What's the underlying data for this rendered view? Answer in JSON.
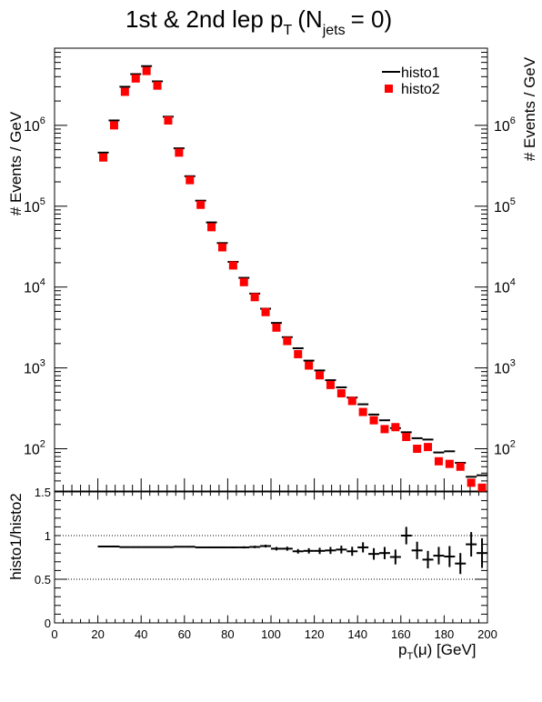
{
  "chart_data": [
    {
      "type": "scatter",
      "title": "1st & 2nd lep p",
      "title_sub_T": "T",
      "title_paren": "(N",
      "title_sub_jets": "jets",
      "title_tail": "= 0)",
      "ylabel": "# Events / GeV",
      "yscale": "log",
      "ylim": [
        30,
        9000000
      ],
      "xlim": [
        0,
        200
      ],
      "y_tick_labels": [
        {
          "base": "10",
          "exp": "2",
          "value": 100
        },
        {
          "base": "10",
          "exp": "3",
          "value": 1000
        },
        {
          "base": "10",
          "exp": "4",
          "value": 10000
        },
        {
          "base": "10",
          "exp": "5",
          "value": 100000
        },
        {
          "base": "10",
          "exp": "6",
          "value": 1000000
        }
      ],
      "legend_position": "top-right",
      "legend": [
        {
          "name": "histo1",
          "marker": "line",
          "color": "#000000"
        },
        {
          "name": "histo2",
          "marker": "square",
          "color": "#ff0000"
        }
      ],
      "x": [
        22.5,
        27.5,
        32.5,
        37.5,
        42.5,
        47.5,
        52.5,
        57.5,
        62.5,
        67.5,
        72.5,
        77.5,
        82.5,
        87.5,
        92.5,
        97.5,
        102.5,
        107.5,
        112.5,
        117.5,
        122.5,
        127.5,
        132.5,
        137.5,
        142.5,
        147.5,
        152.5,
        157.5,
        162.5,
        167.5,
        172.5,
        177.5,
        182.5,
        187.5,
        192.5,
        197.5
      ],
      "series": [
        {
          "name": "histo1",
          "color": "#000000",
          "values": [
            460000,
            1150000,
            3000000,
            4300000,
            5400000,
            3500000,
            1280000,
            520000,
            235000,
            117000,
            63000,
            35000,
            20500,
            13000,
            8300,
            5400,
            3600,
            2400,
            1750,
            1230,
            930,
            705,
            575,
            430,
            355,
            265,
            225,
            180,
            160,
            135,
            130,
            90,
            93,
            67,
            45,
            47
          ]
        },
        {
          "name": "histo2",
          "color": "#ff0000",
          "values": [
            400000,
            1000000,
            2600000,
            3800000,
            4700000,
            3100000,
            1150000,
            460000,
            210000,
            104000,
            55000,
            31000,
            18500,
            11500,
            7500,
            4900,
            3150,
            2150,
            1480,
            1070,
            810,
            615,
            485,
            390,
            285,
            225,
            175,
            185,
            140,
            100,
            105,
            70,
            65,
            60,
            38,
            33
          ]
        }
      ]
    },
    {
      "type": "scatter",
      "ylabel": "histo1/histo2",
      "xlabel": "p",
      "xlabel_sub": "T",
      "xlabel_tail": "(μ) [GeV]",
      "ylim": [
        0,
        1.5
      ],
      "xlim": [
        0,
        200
      ],
      "y_ticks": [
        "0",
        "0.5",
        "1",
        "1.5"
      ],
      "x_ticks": [
        "0",
        "20",
        "40",
        "60",
        "80",
        "100",
        "120",
        "140",
        "160",
        "180",
        "200"
      ],
      "reference_lines": [
        0.5,
        1.0
      ],
      "x": [
        22.5,
        27.5,
        32.5,
        37.5,
        42.5,
        47.5,
        52.5,
        57.5,
        62.5,
        67.5,
        72.5,
        77.5,
        82.5,
        87.5,
        92.5,
        97.5,
        102.5,
        107.5,
        112.5,
        117.5,
        122.5,
        127.5,
        132.5,
        137.5,
        142.5,
        147.5,
        152.5,
        157.5,
        162.5,
        167.5,
        172.5,
        177.5,
        182.5,
        187.5,
        192.5,
        197.5
      ],
      "ratio": [
        0.875,
        0.875,
        0.868,
        0.868,
        0.868,
        0.868,
        0.868,
        0.872,
        0.872,
        0.865,
        0.865,
        0.865,
        0.865,
        0.865,
        0.87,
        0.88,
        0.85,
        0.85,
        0.82,
        0.825,
        0.825,
        0.83,
        0.84,
        0.82,
        0.865,
        0.79,
        0.8,
        0.755,
        1.0,
        0.83,
        0.725,
        0.77,
        0.76,
        0.68,
        0.9,
        0.8
      ],
      "ratio_err": [
        0.005,
        0.005,
        0.005,
        0.005,
        0.005,
        0.005,
        0.005,
        0.005,
        0.005,
        0.006,
        0.007,
        0.008,
        0.01,
        0.012,
        0.014,
        0.016,
        0.02,
        0.023,
        0.026,
        0.031,
        0.036,
        0.04,
        0.045,
        0.052,
        0.058,
        0.066,
        0.07,
        0.085,
        0.1,
        0.1,
        0.1,
        0.1,
        0.12,
        0.12,
        0.14,
        0.17
      ]
    }
  ]
}
